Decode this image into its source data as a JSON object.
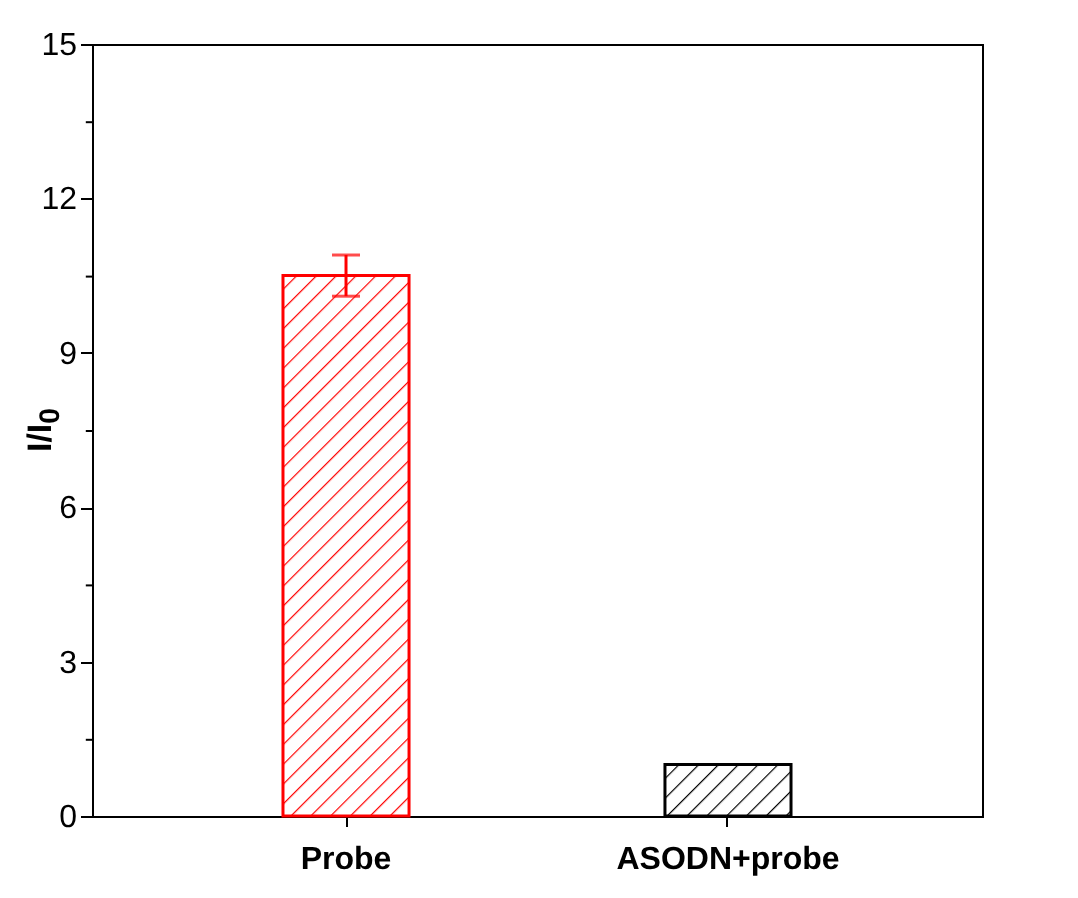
{
  "chart_data": {
    "type": "bar",
    "ylabel": "I/I$_{0}$",
    "categories": [
      "Probe",
      "ASODN+probe"
    ],
    "values": [
      10.5,
      1.0
    ],
    "colors": [
      "#ff0000",
      "#000000"
    ],
    "errors": [
      0.4,
      null
    ],
    "ylim": [
      0,
      15
    ],
    "yticks": [
      0,
      {
        "value": 1.5,
        "label": null
      },
      3,
      {
        "value": 4.5,
        "label": null
      },
      6,
      {
        "value": 7.5,
        "label": null
      },
      9,
      {
        "value": 10.5,
        "label": null
      },
      12,
      {
        "value": 13.5,
        "label": null
      },
      15
    ],
    "grid": false
  }
}
